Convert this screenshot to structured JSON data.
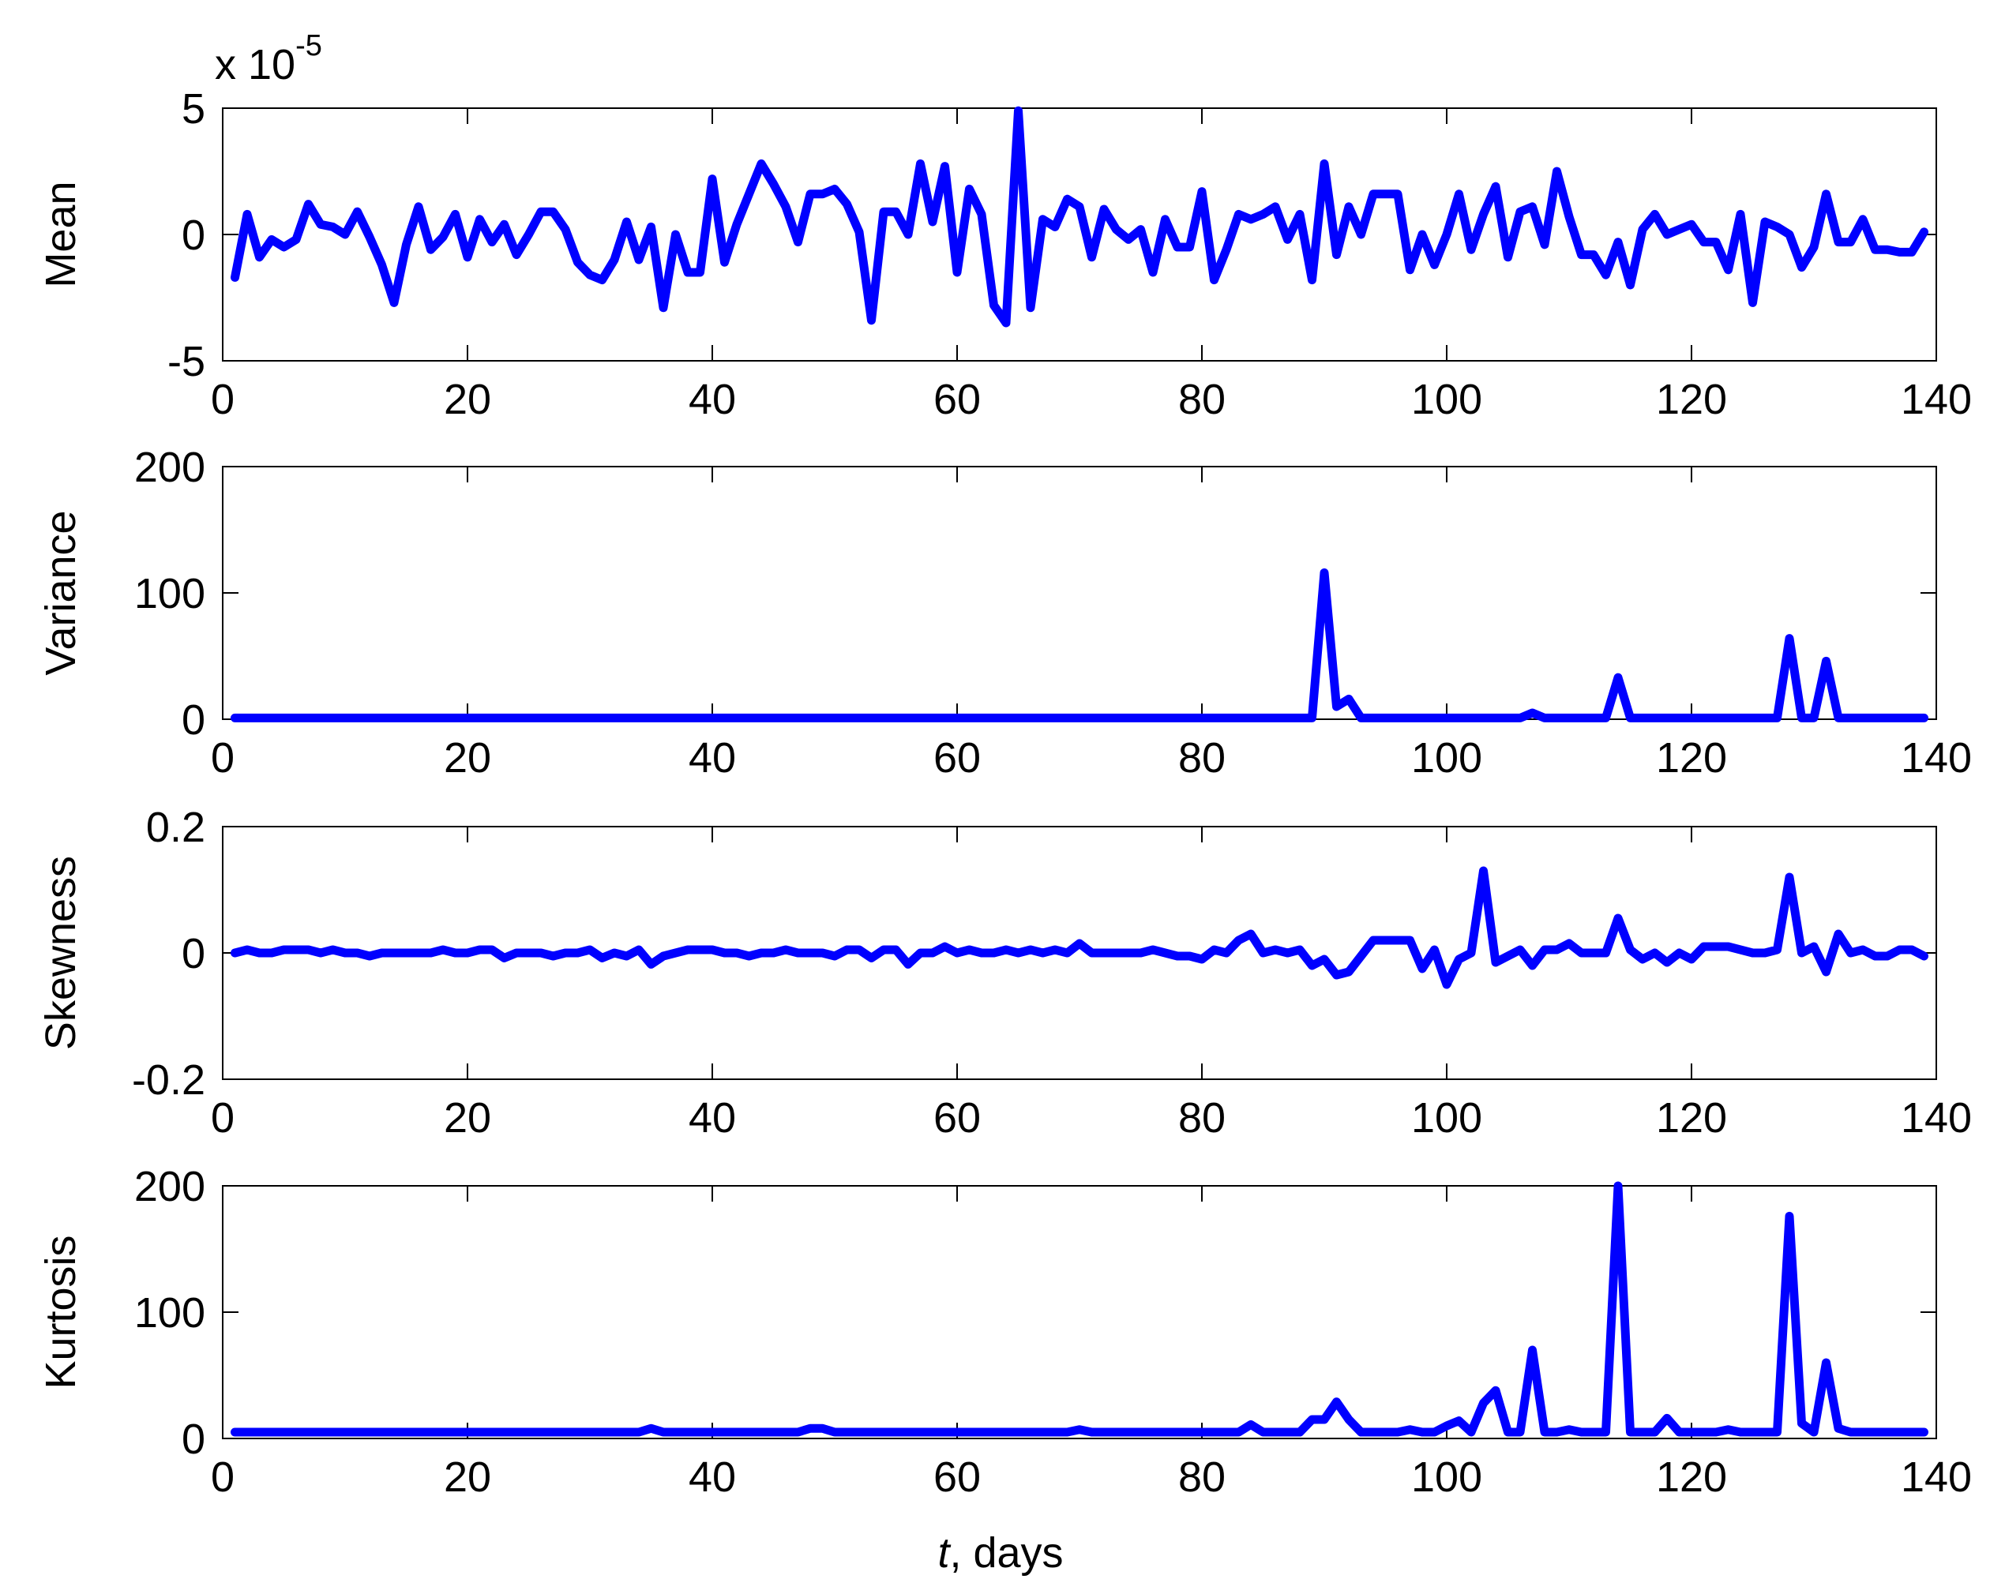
{
  "xlabel": {
    "italic": "t",
    "rest": ", days"
  },
  "colors": {
    "line": "#0000ff",
    "axes": "#000000",
    "background": "#ffffff"
  },
  "chart_data": [
    {
      "type": "line",
      "ylabel": "Mean",
      "scale_factor": "x 10",
      "scale_exponent": "-5",
      "xlim": [
        0,
        140
      ],
      "ylim": [
        -5,
        5
      ],
      "xticks": [
        0,
        20,
        40,
        60,
        80,
        100,
        120,
        140
      ],
      "yticks": [
        -5,
        0,
        5
      ],
      "grid": false,
      "x": [
        1,
        2,
        3,
        4,
        5,
        6,
        7,
        8,
        9,
        10,
        11,
        12,
        13,
        14,
        15,
        16,
        17,
        18,
        19,
        20,
        21,
        22,
        23,
        24,
        25,
        26,
        27,
        28,
        29,
        30,
        31,
        32,
        33,
        34,
        35,
        36,
        37,
        38,
        39,
        40,
        41,
        42,
        43,
        44,
        45,
        46,
        47,
        48,
        49,
        50,
        51,
        52,
        53,
        54,
        55,
        56,
        57,
        58,
        59,
        60,
        61,
        62,
        63,
        64,
        65,
        66,
        67,
        68,
        69,
        70,
        71,
        72,
        73,
        74,
        75,
        76,
        77,
        78,
        79,
        80,
        81,
        82,
        83,
        84,
        85,
        86,
        87,
        88,
        89,
        90,
        91,
        92,
        93,
        94,
        95,
        96,
        97,
        98,
        99,
        100,
        101,
        102,
        103,
        104,
        105,
        106,
        107,
        108,
        109,
        110,
        111,
        112,
        113,
        114,
        115,
        116,
        117,
        118,
        119,
        120,
        121,
        122,
        123,
        124,
        125,
        126,
        127,
        128,
        129,
        130,
        131,
        132,
        133,
        134,
        135,
        136,
        137,
        138,
        139
      ],
      "y": [
        -1.7,
        0.8,
        -0.9,
        -0.2,
        -0.5,
        -0.2,
        1.2,
        0.4,
        0.3,
        0.0,
        0.9,
        -0.1,
        -1.2,
        -2.7,
        -0.4,
        1.1,
        -0.6,
        -0.1,
        0.8,
        -0.9,
        0.6,
        -0.3,
        0.4,
        -0.8,
        0.0,
        0.9,
        0.9,
        0.2,
        -1.1,
        -1.6,
        -1.8,
        -1.0,
        0.5,
        -1.0,
        0.3,
        -2.9,
        0.0,
        -1.5,
        -1.5,
        2.2,
        -1.1,
        0.4,
        1.6,
        2.8,
        2.0,
        1.1,
        -0.3,
        1.6,
        1.6,
        1.8,
        1.2,
        0.1,
        -3.4,
        0.9,
        0.9,
        0.0,
        2.8,
        0.5,
        2.7,
        -1.5,
        1.8,
        0.8,
        -2.8,
        -3.5,
        4.9,
        -2.9,
        0.6,
        0.3,
        1.4,
        1.1,
        -0.9,
        1.0,
        0.2,
        -0.2,
        0.2,
        -1.5,
        0.6,
        -0.5,
        -0.5,
        1.7,
        -1.8,
        -0.6,
        0.8,
        0.6,
        0.8,
        1.1,
        -0.2,
        0.8,
        -1.8,
        2.8,
        -0.8,
        1.1,
        0.0,
        1.6,
        1.6,
        1.6,
        -1.4,
        0.0,
        -1.2,
        0.0,
        1.6,
        -0.6,
        0.8,
        1.9,
        -0.9,
        0.9,
        1.1,
        -0.4,
        2.5,
        0.7,
        -0.8,
        -0.8,
        -1.6,
        -0.3,
        -2.0,
        0.2,
        0.8,
        0.0,
        0.2,
        0.4,
        -0.3,
        -0.3,
        -1.4,
        0.8,
        -2.7,
        0.5,
        0.3,
        0.0,
        -1.3,
        -0.5,
        1.6,
        -0.3,
        -0.3,
        0.6,
        -0.6,
        -0.6,
        -0.7,
        -0.7,
        0.1
      ]
    },
    {
      "type": "line",
      "ylabel": "Variance",
      "xlim": [
        0,
        140
      ],
      "ylim": [
        0,
        200
      ],
      "xticks": [
        0,
        20,
        40,
        60,
        80,
        100,
        120,
        140
      ],
      "yticks": [
        0,
        100,
        200
      ],
      "grid": false,
      "x": [
        1,
        88,
        89,
        90,
        91,
        92,
        93,
        94,
        105,
        106,
        107,
        108,
        112,
        113,
        114,
        115,
        126,
        127,
        128,
        129,
        130,
        131,
        132,
        139
      ],
      "y": [
        1,
        1,
        1,
        116,
        10,
        16,
        1,
        1,
        1,
        1,
        5,
        1,
        1,
        1,
        33,
        1,
        1,
        1,
        64,
        1,
        1,
        46,
        1,
        1
      ]
    },
    {
      "type": "line",
      "ylabel": "Skewness",
      "xlim": [
        0,
        140
      ],
      "ylim": [
        -0.2,
        0.2
      ],
      "xticks": [
        0,
        20,
        40,
        60,
        80,
        100,
        120,
        140
      ],
      "yticks": [
        -0.2,
        0,
        0.2
      ],
      "grid": false,
      "x": [
        1,
        2,
        3,
        4,
        5,
        6,
        7,
        8,
        9,
        10,
        11,
        12,
        13,
        14,
        15,
        16,
        17,
        18,
        19,
        20,
        21,
        22,
        23,
        24,
        25,
        26,
        27,
        28,
        29,
        30,
        31,
        32,
        33,
        34,
        35,
        36,
        37,
        38,
        39,
        40,
        41,
        42,
        43,
        44,
        45,
        46,
        47,
        48,
        49,
        50,
        51,
        52,
        53,
        54,
        55,
        56,
        57,
        58,
        59,
        60,
        61,
        62,
        63,
        64,
        65,
        66,
        67,
        68,
        69,
        70,
        71,
        72,
        73,
        74,
        75,
        76,
        77,
        78,
        79,
        80,
        81,
        82,
        83,
        84,
        85,
        86,
        87,
        88,
        89,
        90,
        91,
        92,
        93,
        94,
        95,
        96,
        97,
        98,
        99,
        100,
        101,
        102,
        103,
        104,
        105,
        106,
        107,
        108,
        109,
        110,
        111,
        112,
        113,
        114,
        115,
        116,
        117,
        118,
        119,
        120,
        121,
        122,
        123,
        124,
        125,
        126,
        127,
        128,
        129,
        130,
        131,
        132,
        133,
        134,
        135,
        136,
        137,
        138,
        139
      ],
      "y": [
        0.0,
        0.005,
        0.0,
        0.0,
        0.005,
        0.005,
        0.005,
        0.0,
        0.005,
        0.0,
        0.0,
        -0.005,
        0.0,
        0.0,
        0.0,
        0.0,
        0.0,
        0.005,
        0.0,
        0.0,
        0.005,
        0.005,
        -0.008,
        0.0,
        0.0,
        0.0,
        -0.005,
        0.0,
        0.0,
        0.005,
        -0.008,
        0.0,
        -0.005,
        0.005,
        -0.018,
        -0.005,
        0.0,
        0.005,
        0.005,
        0.005,
        0.0,
        0.0,
        -0.005,
        0.0,
        0.0,
        0.005,
        0.0,
        0.0,
        0.0,
        -0.005,
        0.005,
        0.005,
        -0.008,
        0.005,
        0.005,
        -0.018,
        0.0,
        0.0,
        0.01,
        0.0,
        0.005,
        0.0,
        0.0,
        0.005,
        0.0,
        0.005,
        0.0,
        0.005,
        0.0,
        0.015,
        0.0,
        0.0,
        0.0,
        0.0,
        0.0,
        0.005,
        0.0,
        -0.005,
        -0.005,
        -0.01,
        0.005,
        0.0,
        0.02,
        0.03,
        0.0,
        0.005,
        0.0,
        0.005,
        -0.02,
        -0.01,
        -0.035,
        -0.03,
        -0.005,
        0.02,
        0.02,
        0.02,
        0.02,
        -0.025,
        0.005,
        -0.05,
        -0.01,
        0.0,
        0.13,
        -0.015,
        -0.005,
        0.005,
        -0.02,
        0.005,
        0.005,
        0.015,
        0.0,
        0.0,
        0.0,
        0.055,
        0.005,
        -0.01,
        0.0,
        -0.015,
        0.0,
        -0.01,
        0.01,
        0.01,
        0.01,
        0.005,
        0.0,
        0.0,
        0.005,
        0.12,
        0.0,
        0.01,
        -0.03,
        0.03,
        0.0,
        0.005,
        -0.005,
        -0.005,
        0.005,
        0.005,
        -0.005
      ]
    },
    {
      "type": "line",
      "ylabel": "Kurtosis",
      "xlim": [
        0,
        140
      ],
      "ylim": [
        0,
        200
      ],
      "xticks": [
        0,
        20,
        40,
        60,
        80,
        100,
        120,
        140
      ],
      "yticks": [
        0,
        100,
        200
      ],
      "grid": false,
      "x": [
        1,
        34,
        35,
        36,
        47,
        48,
        49,
        50,
        69,
        70,
        71,
        83,
        84,
        85,
        88,
        89,
        90,
        91,
        92,
        93,
        94,
        96,
        97,
        98,
        99,
        100,
        101,
        102,
        103,
        104,
        105,
        106,
        107,
        108,
        109,
        110,
        111,
        112,
        113,
        114,
        115,
        116,
        117,
        118,
        119,
        120,
        121,
        122,
        123,
        124,
        125,
        126,
        127,
        128,
        129,
        130,
        131,
        132,
        133,
        139
      ],
      "y": [
        5,
        5,
        8,
        5,
        5,
        8,
        8,
        5,
        5,
        7,
        5,
        5,
        11,
        5,
        5,
        15,
        15,
        29,
        15,
        5,
        5,
        5,
        7,
        5,
        5,
        10,
        14,
        5,
        28,
        38,
        5,
        5,
        70,
        5,
        5,
        7,
        5,
        5,
        5,
        200,
        5,
        5,
        5,
        16,
        5,
        5,
        5,
        5,
        7,
        5,
        5,
        5,
        5,
        176,
        12,
        5,
        60,
        8,
        5,
        5
      ]
    }
  ]
}
